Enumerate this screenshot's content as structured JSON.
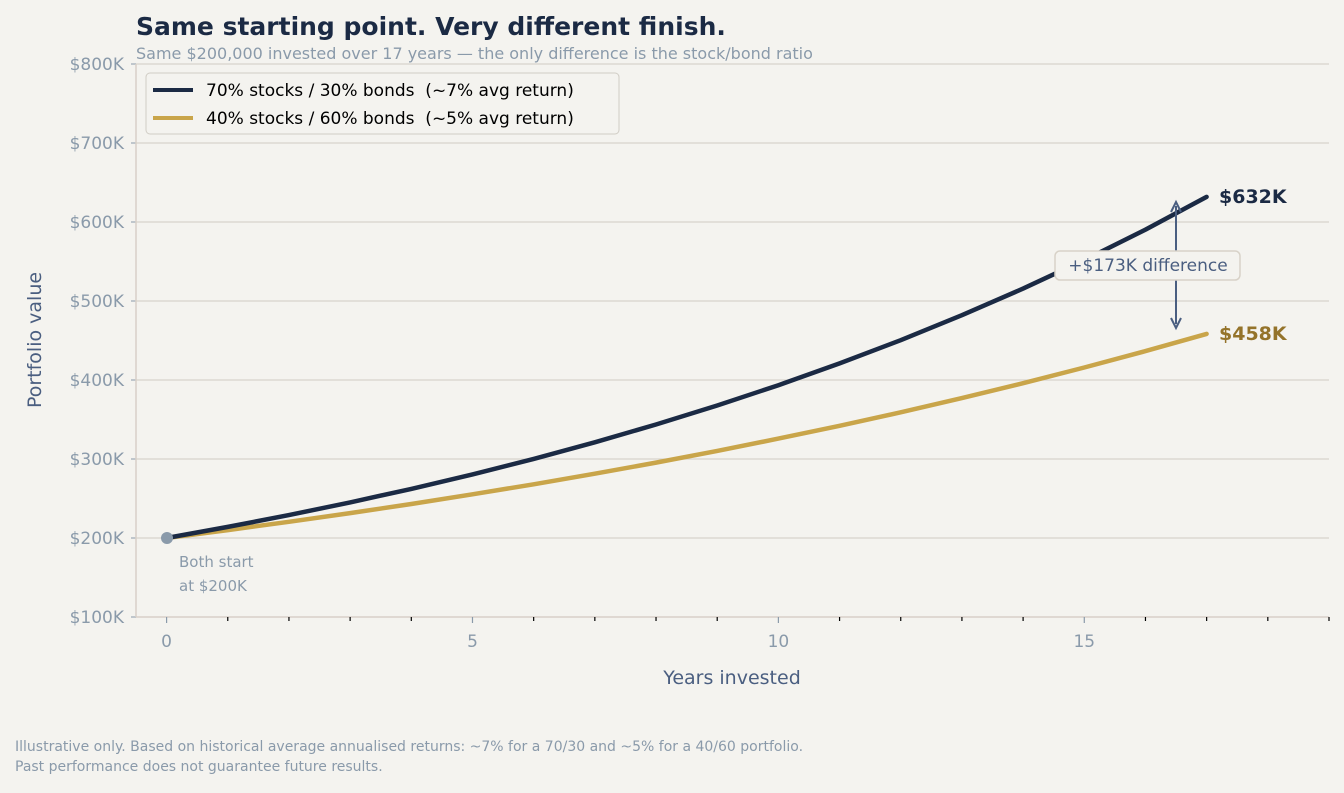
{
  "chart_data": {
    "type": "line",
    "title": "Same starting point. Very different finish.",
    "subtitle": "Same $200,000 invested over 17 years — the only difference is the stock/bond ratio",
    "xlabel": "Years invested",
    "ylabel": "Portfolio value",
    "xlim": [
      -0.5,
      19
    ],
    "ylim": [
      100000,
      800000
    ],
    "x_ticks": [
      0,
      5,
      10,
      15
    ],
    "x_tick_labels": [
      "0",
      "5",
      "10",
      "15"
    ],
    "y_ticks": [
      100000,
      200000,
      300000,
      400000,
      500000,
      600000,
      700000,
      800000
    ],
    "y_tick_labels": [
      "$100K",
      "$200K",
      "$300K",
      "$400K",
      "$500K",
      "$600K",
      "$700K",
      "$800K"
    ],
    "grid": "horizontal",
    "legend_position": "top-left",
    "x": [
      0,
      1,
      2,
      3,
      4,
      5,
      6,
      7,
      8,
      9,
      10,
      11,
      12,
      13,
      14,
      15,
      16,
      17
    ],
    "series": [
      {
        "name": "70% stocks / 30% bonds  (~7% avg return)",
        "color": "#1b2a44",
        "values": [
          200000,
          214000,
          228980,
          245009,
          262159,
          280510,
          300146,
          321156,
          343637,
          367692,
          393430,
          420970,
          450438,
          481969,
          515707,
          551806,
          590432,
          631763
        ],
        "end_label": "$632K"
      },
      {
        "name": "40% stocks / 60% bonds  (~5% avg return)",
        "color": "#c9a54a",
        "values": [
          200000,
          210000,
          220500,
          231525,
          243101,
          255256,
          268019,
          281420,
          295491,
          310266,
          325779,
          342068,
          359171,
          377130,
          395986,
          415786,
          436575,
          458404
        ],
        "end_label": "$458K",
        "end_label_color": "#94732a"
      }
    ],
    "annotations": {
      "difference": "+$173K difference",
      "start": [
        "Both start",
        "at $200K"
      ]
    },
    "footnote": [
      "Illustrative only. Based on historical average annualised returns: ~7% for a 70/30 and ~5% for a 40/60 portfolio.",
      "Past performance does not guarantee future results."
    ]
  }
}
